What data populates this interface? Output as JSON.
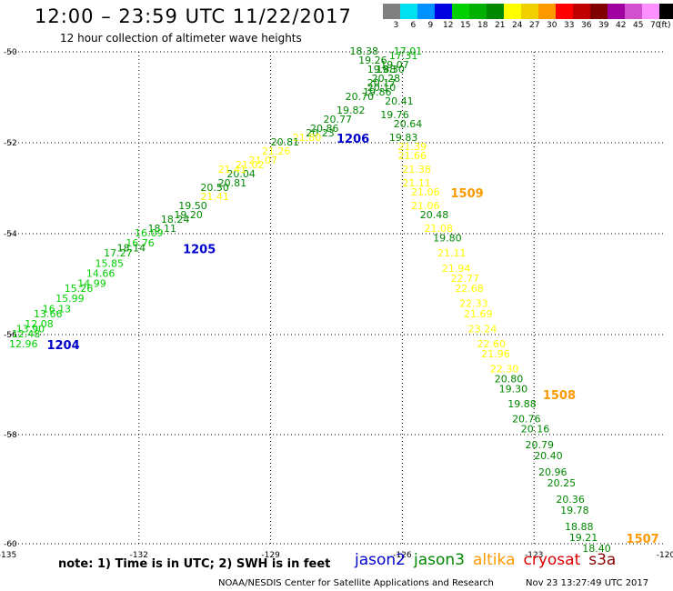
{
  "header": {
    "title": "12:00 – 23:59 UTC 11/22/2017",
    "subtitle": "12 hour collection of altimeter wave heights"
  },
  "colorbar": {
    "unit_label": "(ft)",
    "swatches": [
      {
        "color": "#808080",
        "label": "3"
      },
      {
        "color": "#00e0f0",
        "label": "6"
      },
      {
        "color": "#0090ff",
        "label": "9"
      },
      {
        "color": "#0000e0",
        "label": "12"
      },
      {
        "color": "#00d000",
        "label": "15"
      },
      {
        "color": "#00b000",
        "label": "18"
      },
      {
        "color": "#008800",
        "label": "21"
      },
      {
        "color": "#ffff00",
        "label": "24"
      },
      {
        "color": "#f0d000",
        "label": "27"
      },
      {
        "color": "#ff9900",
        "label": "30"
      },
      {
        "color": "#ff0000",
        "label": "33"
      },
      {
        "color": "#c00000",
        "label": "36"
      },
      {
        "color": "#800000",
        "label": "39"
      },
      {
        "color": "#a000a0",
        "label": "42"
      },
      {
        "color": "#d050d0",
        "label": "45"
      },
      {
        "color": "#ff90ff",
        "label": "70"
      },
      {
        "color": "#000000",
        "label": ""
      }
    ]
  },
  "axes": {
    "lon_ticks": [
      "-135",
      "-132",
      "-129",
      "-126",
      "-123",
      "-120"
    ],
    "lat_ticks": [
      "-50",
      "-52",
      "-54",
      "-56",
      "-58",
      "-60"
    ],
    "lon_range": [
      -135,
      -120
    ],
    "lat_range": [
      -50,
      -60
    ]
  },
  "chart_data": {
    "type": "scatter",
    "pass_labels": [
      {
        "text": "1206",
        "lon": -127.5,
        "lat": -51.9,
        "color": "#0000cc"
      },
      {
        "text": "1205",
        "lon": -131.0,
        "lat": -54.3,
        "color": "#0000cc"
      },
      {
        "text": "1204",
        "lon": -134.1,
        "lat": -56.2,
        "color": "#0000cc"
      },
      {
        "text": "1509",
        "lon": -124.9,
        "lat": -53.1,
        "color": "#ff9900"
      },
      {
        "text": "1508",
        "lon": -122.8,
        "lat": -57.2,
        "color": "#ff9900"
      },
      {
        "text": "1507",
        "lon": -120.9,
        "lat": -59.9,
        "color": "#ff9900"
      }
    ],
    "series": [
      {
        "name": "swh_track_a",
        "points": [
          {
            "lon": -127.2,
            "lat": -50.0,
            "v": "18.38",
            "c": "#008800"
          },
          {
            "lon": -126.2,
            "lat": -50.0,
            "v": "17.01",
            "c": "#00b000"
          },
          {
            "lon": -126.3,
            "lat": -50.1,
            "v": "17.31",
            "c": "#00b000"
          },
          {
            "lon": -127.0,
            "lat": -50.2,
            "v": "19.26",
            "c": "#008800"
          },
          {
            "lon": -126.5,
            "lat": -50.3,
            "v": "19.07",
            "c": "#008800"
          },
          {
            "lon": -126.8,
            "lat": -50.4,
            "v": "19.88",
            "c": "#008800"
          },
          {
            "lon": -126.6,
            "lat": -50.4,
            "v": "19.30",
            "c": "#008800"
          },
          {
            "lon": -126.7,
            "lat": -50.6,
            "v": "20.28",
            "c": "#008800"
          },
          {
            "lon": -126.8,
            "lat": -50.7,
            "v": "20.17",
            "c": "#008800"
          },
          {
            "lon": -126.8,
            "lat": -50.8,
            "v": "20.10",
            "c": "#008800"
          },
          {
            "lon": -126.9,
            "lat": -50.9,
            "v": "19.86",
            "c": "#008800"
          },
          {
            "lon": -126.4,
            "lat": -51.1,
            "v": "20.41",
            "c": "#008800"
          },
          {
            "lon": -127.3,
            "lat": -51.0,
            "v": "20.70",
            "c": "#008800"
          },
          {
            "lon": -127.5,
            "lat": -51.3,
            "v": "19.82",
            "c": "#008800"
          },
          {
            "lon": -126.5,
            "lat": -51.4,
            "v": "19.76",
            "c": "#008800"
          },
          {
            "lon": -127.8,
            "lat": -51.5,
            "v": "20.77",
            "c": "#008800"
          },
          {
            "lon": -128.1,
            "lat": -51.7,
            "v": "20.86",
            "c": "#008800"
          },
          {
            "lon": -126.2,
            "lat": -51.6,
            "v": "20.64",
            "c": "#008800"
          },
          {
            "lon": -128.2,
            "lat": -51.8,
            "v": "20.23",
            "c": "#008800"
          },
          {
            "lon": -126.3,
            "lat": -51.9,
            "v": "19.83",
            "c": "#008800"
          },
          {
            "lon": -128.5,
            "lat": -51.9,
            "v": "21.80",
            "c": "#ffff00"
          },
          {
            "lon": -129.0,
            "lat": -52.0,
            "v": "20.81",
            "c": "#008800"
          },
          {
            "lon": -126.1,
            "lat": -52.1,
            "v": "21.39",
            "c": "#ffff00"
          },
          {
            "lon": -129.2,
            "lat": -52.2,
            "v": "21.26",
            "c": "#ffff00"
          },
          {
            "lon": -129.5,
            "lat": -52.4,
            "v": "21.07",
            "c": "#ffff00"
          },
          {
            "lon": -126.1,
            "lat": -52.3,
            "v": "21.66",
            "c": "#ffff00"
          },
          {
            "lon": -129.8,
            "lat": -52.5,
            "v": "21.02",
            "c": "#ffff00"
          },
          {
            "lon": -126.0,
            "lat": -52.6,
            "v": "21.38",
            "c": "#ffff00"
          },
          {
            "lon": -130.0,
            "lat": -52.7,
            "v": "20.04",
            "c": "#008800"
          },
          {
            "lon": -130.2,
            "lat": -52.6,
            "v": "21.41",
            "c": "#ffff00"
          },
          {
            "lon": -126.0,
            "lat": -52.9,
            "v": "21.11",
            "c": "#ffff00"
          },
          {
            "lon": -130.2,
            "lat": -52.9,
            "v": "20.81",
            "c": "#008800"
          },
          {
            "lon": -130.6,
            "lat": -53.0,
            "v": "20.50",
            "c": "#008800"
          },
          {
            "lon": -125.8,
            "lat": -53.1,
            "v": "21.06",
            "c": "#ffff00"
          },
          {
            "lon": -130.6,
            "lat": -53.2,
            "v": "21.41",
            "c": "#ffff00"
          },
          {
            "lon": -125.8,
            "lat": -53.4,
            "v": "21.06",
            "c": "#ffff00"
          },
          {
            "lon": -131.1,
            "lat": -53.4,
            "v": "19.50",
            "c": "#008800"
          },
          {
            "lon": -125.6,
            "lat": -53.6,
            "v": "20.48",
            "c": "#008800"
          },
          {
            "lon": -131.2,
            "lat": -53.6,
            "v": "19.20",
            "c": "#008800"
          },
          {
            "lon": -131.5,
            "lat": -53.7,
            "v": "18.24",
            "c": "#008800"
          },
          {
            "lon": -125.5,
            "lat": -53.9,
            "v": "21.08",
            "c": "#ffff00"
          },
          {
            "lon": -131.8,
            "lat": -53.9,
            "v": "18.11",
            "c": "#008800"
          },
          {
            "lon": -132.1,
            "lat": -54.0,
            "v": "16.09",
            "c": "#00d000"
          },
          {
            "lon": -125.3,
            "lat": -54.1,
            "v": "19.80",
            "c": "#008800"
          },
          {
            "lon": -132.3,
            "lat": -54.2,
            "v": "16.76",
            "c": "#00d000"
          },
          {
            "lon": -132.5,
            "lat": -54.3,
            "v": "18.14",
            "c": "#008800"
          },
          {
            "lon": -125.2,
            "lat": -54.4,
            "v": "21.11",
            "c": "#ffff00"
          },
          {
            "lon": -132.8,
            "lat": -54.4,
            "v": "17.27",
            "c": "#00b000"
          },
          {
            "lon": -133.0,
            "lat": -54.6,
            "v": "15.85",
            "c": "#00d000"
          },
          {
            "lon": -125.1,
            "lat": -54.7,
            "v": "21.94",
            "c": "#ffff00"
          },
          {
            "lon": -133.2,
            "lat": -54.8,
            "v": "14.66",
            "c": "#00d000"
          },
          {
            "lon": -124.9,
            "lat": -54.9,
            "v": "22.77",
            "c": "#ffff00"
          },
          {
            "lon": -133.4,
            "lat": -55.0,
            "v": "14.99",
            "c": "#00d000"
          },
          {
            "lon": -133.7,
            "lat": -55.1,
            "v": "15.26",
            "c": "#00d000"
          },
          {
            "lon": -124.8,
            "lat": -55.1,
            "v": "22.68",
            "c": "#ffff00"
          },
          {
            "lon": -133.9,
            "lat": -55.3,
            "v": "15.99",
            "c": "#00d000"
          },
          {
            "lon": -124.7,
            "lat": -55.4,
            "v": "22.33",
            "c": "#ffff00"
          },
          {
            "lon": -134.2,
            "lat": -55.5,
            "v": "16.13",
            "c": "#00d000"
          },
          {
            "lon": -134.4,
            "lat": -55.6,
            "v": "13.66",
            "c": "#00d000"
          },
          {
            "lon": -124.6,
            "lat": -55.6,
            "v": "21.69",
            "c": "#ffff00"
          },
          {
            "lon": -134.6,
            "lat": -55.8,
            "v": "12.08",
            "c": "#00d000"
          },
          {
            "lon": -124.5,
            "lat": -55.9,
            "v": "23.24",
            "c": "#ffff00"
          },
          {
            "lon": -134.8,
            "lat": -55.9,
            "v": "13.90",
            "c": "#00d000"
          },
          {
            "lon": -134.9,
            "lat": -56.0,
            "v": "12.48",
            "c": "#00d000"
          },
          {
            "lon": -124.3,
            "lat": -56.2,
            "v": "22.60",
            "c": "#ffff00"
          },
          {
            "lon": -135.0,
            "lat": -56.2,
            "v": "12.96",
            "c": "#00d000"
          },
          {
            "lon": -124.2,
            "lat": -56.4,
            "v": "21.96",
            "c": "#ffff00"
          },
          {
            "lon": -124.0,
            "lat": -56.7,
            "v": "22.30",
            "c": "#ffff00"
          },
          {
            "lon": -123.9,
            "lat": -56.9,
            "v": "20.80",
            "c": "#008800"
          },
          {
            "lon": -123.8,
            "lat": -57.1,
            "v": "19.30",
            "c": "#008800"
          },
          {
            "lon": -123.6,
            "lat": -57.4,
            "v": "19.88",
            "c": "#008800"
          },
          {
            "lon": -123.5,
            "lat": -57.7,
            "v": "20.76",
            "c": "#008800"
          },
          {
            "lon": -123.3,
            "lat": -57.9,
            "v": "20.16",
            "c": "#008800"
          },
          {
            "lon": -123.2,
            "lat": -58.2,
            "v": "20.79",
            "c": "#008800"
          },
          {
            "lon": -123.0,
            "lat": -58.4,
            "v": "20.40",
            "c": "#008800"
          },
          {
            "lon": -122.9,
            "lat": -58.7,
            "v": "20.96",
            "c": "#008800"
          },
          {
            "lon": -122.7,
            "lat": -58.9,
            "v": "20.25",
            "c": "#008800"
          },
          {
            "lon": -122.5,
            "lat": -59.2,
            "v": "20.36",
            "c": "#008800"
          },
          {
            "lon": -122.4,
            "lat": -59.4,
            "v": "19.78",
            "c": "#008800"
          },
          {
            "lon": -122.3,
            "lat": -59.7,
            "v": "18.88",
            "c": "#008800"
          },
          {
            "lon": -122.2,
            "lat": -59.9,
            "v": "19.21",
            "c": "#008800"
          },
          {
            "lon": -121.9,
            "lat": -60.1,
            "v": "18.40",
            "c": "#008800"
          }
        ]
      }
    ]
  },
  "footer": {
    "note": "note: 1) Time is in UTC; 2) SWH is in feet",
    "legend": [
      {
        "label": "jason2",
        "color": "#0000cc"
      },
      {
        "label": "jason3",
        "color": "#008800"
      },
      {
        "label": "altika",
        "color": "#ff9900"
      },
      {
        "label": "cryosat",
        "color": "#dd0000"
      },
      {
        "label": "s3a",
        "color": "#880000"
      }
    ],
    "credit": "NOAA/NESDIS Center for Satellite Applications and Research",
    "timestamp": "Nov 23 13:27:49 UTC 2017"
  }
}
